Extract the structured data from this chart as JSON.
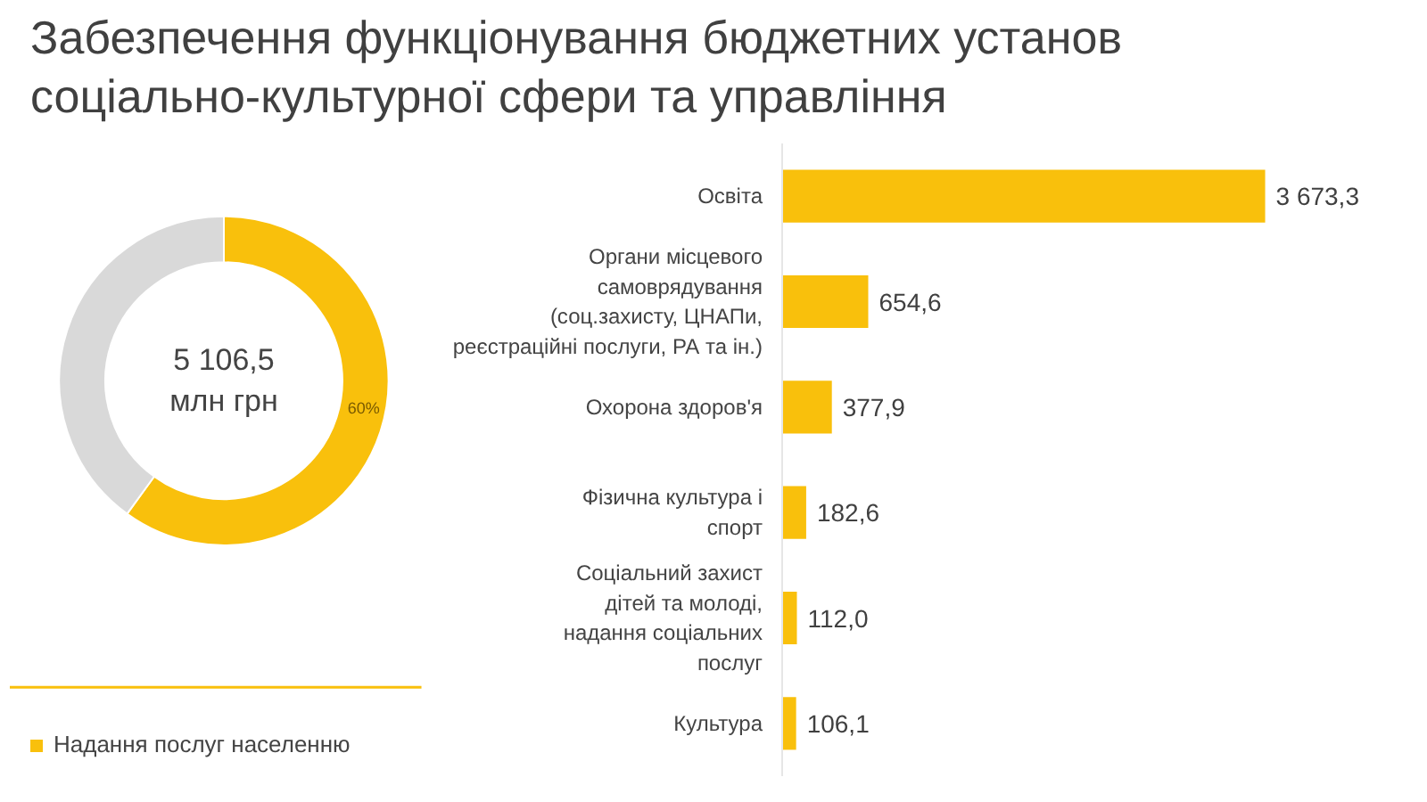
{
  "chart_data": [
    {
      "type": "donut",
      "title": "Забезпечення функціонування бюджетних установ\nсоціально-культурної сфери та управління",
      "categories": [
        "Надання послуг населенню",
        null
      ],
      "values": [
        60,
        40
      ],
      "colors": [
        "#f9c00c",
        "#d9d9d9"
      ],
      "value_labels": [
        "60%",
        null
      ],
      "annotations": [
        "5 106,5\nмлн грн"
      ],
      "legend": "bottom left"
    },
    {
      "type": "bar",
      "orientation": "horizontal",
      "categories": [
        "Освіта",
        "Органи місцевого\nсамоврядування\n(соц.захисту, ЦНАПи,\nреєстраційні послуги, РА та ін.)",
        "Охорона здоров'я",
        "Фізична культура і\nспорт",
        "Соціальний захист\nдітей та молоді,\nнадання соціальних\nпослуг",
        "Культура"
      ],
      "values": [
        3673.3,
        654.6,
        377.9,
        182.6,
        112.0,
        106.1
      ],
      "color": "#f9c00c",
      "value_labels": [
        "3 673,3",
        "654,6",
        "377,9",
        "182,6",
        "112,0",
        "106,1"
      ]
    }
  ]
}
